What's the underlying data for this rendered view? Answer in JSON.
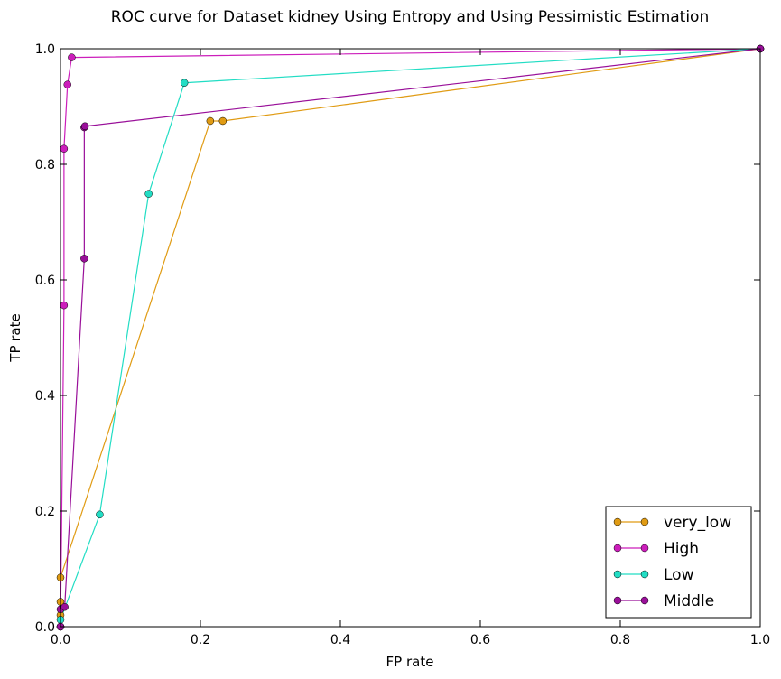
{
  "chart_data": {
    "type": "line",
    "title": "ROC curve for Dataset kidney Using Entropy and Using Pessimistic Estimation",
    "xlabel": "FP rate",
    "ylabel": "TP rate",
    "xlim": [
      0.0,
      1.0
    ],
    "ylim": [
      0.0,
      1.0
    ],
    "xticks": [
      "0.0",
      "0.2",
      "0.4",
      "0.6",
      "0.8",
      "1.0"
    ],
    "yticks": [
      "0.0",
      "0.2",
      "0.4",
      "0.6",
      "0.8",
      "1.0"
    ],
    "grid": false,
    "legend_position": "bottom-right",
    "series": [
      {
        "name": "very_low",
        "color": "#e09b13",
        "points": [
          [
            0.0,
            0.0
          ],
          [
            0.0,
            0.02
          ],
          [
            0.0,
            0.043
          ],
          [
            0.0,
            0.085
          ],
          [
            0.214,
            0.875
          ],
          [
            0.232,
            0.875
          ],
          [
            1.0,
            1.0
          ]
        ]
      },
      {
        "name": "High",
        "color": "#cc1ebb",
        "points": [
          [
            0.0,
            0.0
          ],
          [
            0.005,
            0.556
          ],
          [
            0.005,
            0.827
          ],
          [
            0.01,
            0.938
          ],
          [
            0.016,
            0.985
          ],
          [
            1.0,
            1.0
          ]
        ]
      },
      {
        "name": "Low",
        "color": "#22ddc4",
        "points": [
          [
            0.0,
            0.0
          ],
          [
            0.0,
            0.012
          ],
          [
            0.056,
            0.194
          ],
          [
            0.126,
            0.749
          ],
          [
            0.177,
            0.941
          ],
          [
            1.0,
            1.0
          ]
        ]
      },
      {
        "name": "Middle",
        "color": "#990f99",
        "points": [
          [
            0.0,
            0.0
          ],
          [
            0.0,
            0.03
          ],
          [
            0.006,
            0.034
          ],
          [
            0.034,
            0.637
          ],
          [
            0.034,
            0.864
          ],
          [
            0.035,
            0.866
          ],
          [
            1.0,
            1.0
          ]
        ]
      }
    ]
  }
}
